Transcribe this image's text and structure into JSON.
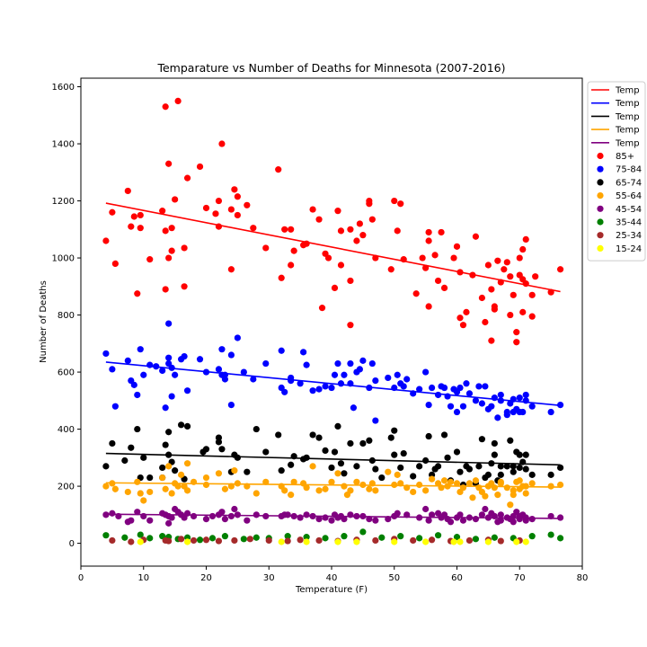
{
  "chart_data": {
    "type": "scatter",
    "title": "Temparature vs Number of Deaths for Minnesota (2007-2016)",
    "xlabel": "Temperature (F)",
    "ylabel": "Number of Deaths",
    "xlim": [
      0,
      80
    ],
    "ylim": [
      -80,
      1630
    ],
    "xticks": [
      0,
      10,
      20,
      30,
      40,
      50,
      60,
      70,
      80
    ],
    "yticks": [
      0,
      200,
      400,
      600,
      800,
      1000,
      1200,
      1400,
      1600
    ],
    "grid": false,
    "legend_position": "outside-right",
    "trendlines": [
      {
        "name": "Temp",
        "color": "#ff0000",
        "x": [
          4,
          76.5
        ],
        "y": [
          1192,
          882
        ]
      },
      {
        "name": "Temp",
        "color": "#0000ff",
        "x": [
          4,
          76.5
        ],
        "y": [
          635,
          483
        ]
      },
      {
        "name": "Temp",
        "color": "#000000",
        "x": [
          4,
          76.5
        ],
        "y": [
          315,
          275
        ]
      },
      {
        "name": "Temp",
        "color": "#ffa500",
        "x": [
          4,
          76.5
        ],
        "y": [
          212,
          197
        ]
      },
      {
        "name": "Temp",
        "color": "#800080",
        "x": [
          4,
          76.5
        ],
        "y": [
          102,
          87
        ]
      }
    ],
    "series": [
      {
        "name": "85+",
        "color": "#ff0000",
        "x": [
          4,
          5,
          5.5,
          7.5,
          8,
          8.5,
          9,
          9.5,
          9.5,
          11,
          13,
          13.5,
          13.5,
          13.5,
          14,
          14,
          14.5,
          14.5,
          15,
          15.5,
          16.5,
          16.5,
          17,
          19,
          20,
          21.5,
          22,
          22,
          22.5,
          24,
          24,
          24.5,
          25,
          25,
          26.5,
          27.5,
          29.5,
          31.5,
          32,
          32.5,
          33.5,
          33.5,
          34,
          35.5,
          36,
          37,
          38,
          38.5,
          39,
          39.5,
          40.5,
          41,
          41.5,
          41.5,
          43,
          43,
          43,
          44,
          44.5,
          45,
          46,
          46,
          46.5,
          47,
          49.5,
          50,
          50.5,
          51,
          51.5,
          53.5,
          54.5,
          55,
          55.5,
          55.5,
          55.5,
          56.5,
          57,
          57.5,
          58,
          59.5,
          60,
          60.5,
          60.5,
          61,
          61.5,
          62.5,
          63,
          64,
          64.5,
          65,
          65.5,
          65.5,
          66,
          66,
          66.5,
          67,
          67.5,
          68,
          68.5,
          68.5,
          69,
          69.5,
          69.5,
          70,
          70,
          70.5,
          70.5,
          70.5,
          71,
          71,
          72,
          72,
          72.5,
          75,
          76.5
        ],
        "y": [
          1060,
          1160,
          980,
          1235,
          1110,
          1145,
          875,
          1105,
          1150,
          995,
          1165,
          1095,
          890,
          1530,
          1330,
          1000,
          1025,
          1105,
          1205,
          1550,
          1035,
          900,
          1280,
          1320,
          1175,
          1155,
          1110,
          1200,
          1400,
          960,
          1170,
          1240,
          1215,
          1150,
          1185,
          1105,
          1035,
          1310,
          930,
          1100,
          975,
          1100,
          1025,
          1045,
          1050,
          1170,
          1135,
          825,
          1015,
          1000,
          895,
          1165,
          975,
          1095,
          765,
          920,
          1100,
          1060,
          1120,
          1080,
          1190,
          1200,
          1135,
          1000,
          960,
          1200,
          1095,
          1190,
          995,
          875,
          1000,
          965,
          1060,
          830,
          1090,
          1010,
          920,
          1090,
          895,
          1000,
          1040,
          790,
          950,
          765,
          810,
          940,
          1075,
          860,
          775,
          975,
          710,
          890,
          820,
          830,
          990,
          915,
          960,
          985,
          935,
          800,
          870,
          705,
          740,
          1000,
          940,
          1030,
          810,
          925,
          1065,
          910,
          870,
          795,
          935,
          880,
          960
        ]
      },
      {
        "name": "75-84",
        "color": "#0000ff",
        "x": [
          4,
          5,
          5.5,
          7.5,
          8,
          8.5,
          9,
          9.5,
          10,
          11,
          12,
          13,
          13.5,
          14,
          14,
          14,
          14.5,
          14.5,
          15,
          16,
          16.5,
          17,
          19,
          20,
          22,
          22.5,
          22.5,
          23,
          23,
          24,
          24,
          25,
          26,
          27.5,
          29.5,
          32,
          32,
          32.5,
          33.5,
          33.5,
          35,
          35.5,
          36,
          37,
          38,
          39,
          40,
          40.5,
          41,
          41.5,
          42,
          43,
          43,
          43.5,
          44,
          44.5,
          45,
          46,
          46.5,
          47,
          47,
          49,
          50,
          50.5,
          51,
          51.5,
          52,
          53,
          54,
          55,
          55.5,
          56,
          57,
          57.5,
          58,
          58.5,
          59,
          59.5,
          60,
          60,
          60.5,
          61,
          61.5,
          62,
          63,
          63.5,
          64,
          64.5,
          65,
          65.5,
          66,
          66.5,
          67,
          67,
          68,
          68,
          68.5,
          69,
          69,
          69.5,
          70,
          70,
          70.5,
          71,
          71,
          72,
          75,
          76.5
        ],
        "y": [
          665,
          610,
          480,
          640,
          570,
          555,
          520,
          680,
          590,
          625,
          620,
          605,
          475,
          770,
          650,
          630,
          615,
          515,
          590,
          645,
          655,
          535,
          645,
          600,
          610,
          680,
          590,
          575,
          590,
          660,
          485,
          720,
          600,
          575,
          630,
          675,
          545,
          530,
          570,
          580,
          560,
          670,
          625,
          535,
          540,
          550,
          545,
          590,
          630,
          560,
          590,
          560,
          630,
          475,
          600,
          610,
          640,
          545,
          630,
          430,
          570,
          580,
          545,
          590,
          560,
          550,
          575,
          525,
          540,
          600,
          485,
          545,
          520,
          550,
          545,
          515,
          480,
          540,
          530,
          460,
          545,
          480,
          560,
          525,
          500,
          550,
          490,
          550,
          470,
          480,
          510,
          440,
          520,
          500,
          460,
          450,
          490,
          460,
          505,
          470,
          460,
          510,
          460,
          520,
          500,
          480,
          460,
          485
        ]
      },
      {
        "name": "65-74",
        "color": "#000000",
        "x": [
          4,
          5,
          7,
          8,
          9,
          9.5,
          10,
          11,
          13,
          13,
          13.5,
          14,
          14,
          14.5,
          15,
          16,
          16.5,
          17,
          19.5,
          20,
          22,
          22,
          22.5,
          24,
          24.5,
          25,
          26.5,
          28,
          29.5,
          31.5,
          32,
          33.5,
          34,
          35.5,
          36,
          37,
          38,
          39,
          40,
          40.5,
          41,
          41.5,
          42,
          43,
          44,
          45,
          46,
          46.5,
          47,
          48,
          49.5,
          50,
          50,
          51,
          51.5,
          53,
          54,
          55,
          55.5,
          56,
          56.5,
          57,
          58,
          58.5,
          59,
          60,
          60.5,
          61,
          61.5,
          62,
          63,
          63.5,
          64,
          64.5,
          65,
          65.5,
          66,
          66,
          66.5,
          67,
          67,
          68,
          68.5,
          69,
          69,
          69.5,
          70,
          70,
          70.5,
          71,
          71,
          72,
          75,
          76.5
        ],
        "y": [
          270,
          350,
          290,
          335,
          400,
          230,
          300,
          230,
          265,
          230,
          345,
          390,
          310,
          285,
          255,
          415,
          225,
          410,
          320,
          330,
          355,
          370,
          330,
          250,
          310,
          300,
          250,
          400,
          320,
          380,
          255,
          275,
          305,
          295,
          300,
          380,
          370,
          325,
          265,
          320,
          410,
          280,
          245,
          350,
          270,
          350,
          360,
          290,
          260,
          230,
          370,
          395,
          310,
          265,
          315,
          235,
          270,
          290,
          375,
          240,
          260,
          270,
          380,
          300,
          220,
          320,
          250,
          205,
          270,
          260,
          210,
          270,
          365,
          230,
          240,
          280,
          310,
          350,
          220,
          270,
          240,
          270,
          360,
          270,
          250,
          320,
          265,
          310,
          285,
          260,
          310,
          240,
          240,
          265
        ]
      },
      {
        "name": "55-64",
        "color": "#ffa500",
        "x": [
          4,
          5,
          5.5,
          7.5,
          9,
          9.5,
          10,
          11,
          13,
          13.5,
          14,
          14.5,
          15,
          15.5,
          16,
          16.5,
          17,
          17,
          18,
          20,
          20,
          22,
          23,
          24,
          24.5,
          25,
          26.5,
          28,
          29.5,
          32,
          32.5,
          33.5,
          34,
          35.5,
          36,
          37,
          38,
          39,
          40,
          41,
          42,
          42.5,
          43,
          44,
          45,
          46,
          46.5,
          47,
          49,
          50,
          50.5,
          51,
          52,
          53,
          54,
          55,
          56,
          57,
          57.5,
          58,
          58.5,
          59,
          60,
          60.5,
          61,
          62,
          62.5,
          63,
          63.5,
          64,
          64.5,
          65,
          65.5,
          66,
          66.5,
          67,
          67,
          68,
          68.5,
          69,
          69,
          69.5,
          70,
          70,
          70.5,
          71,
          71,
          72,
          75,
          76.5
        ],
        "y": [
          200,
          210,
          190,
          180,
          215,
          175,
          150,
          180,
          230,
          190,
          270,
          175,
          210,
          200,
          240,
          200,
          280,
          185,
          215,
          230,
          205,
          245,
          190,
          200,
          255,
          210,
          200,
          175,
          215,
          200,
          185,
          170,
          215,
          210,
          195,
          270,
          185,
          190,
          215,
          245,
          200,
          170,
          185,
          215,
          205,
          190,
          210,
          185,
          250,
          205,
          240,
          210,
          195,
          180,
          205,
          185,
          225,
          210,
          195,
          220,
          200,
          215,
          210,
          180,
          195,
          210,
          160,
          220,
          195,
          180,
          165,
          200,
          210,
          195,
          170,
          210,
          215,
          195,
          135,
          185,
          170,
          215,
          190,
          220,
          200,
          175,
          200,
          210,
          200,
          205
        ]
      },
      {
        "name": "45-54",
        "color": "#800080",
        "x": [
          4,
          5,
          6,
          7.5,
          8,
          9,
          10,
          11,
          13,
          13.5,
          14,
          14,
          14.5,
          15,
          15.5,
          16,
          16.5,
          17,
          18,
          20,
          21,
          22,
          22.5,
          23,
          24,
          24.5,
          25,
          26.5,
          28,
          29.5,
          32,
          32.5,
          33,
          34,
          35,
          36,
          37,
          38,
          39,
          40,
          40.5,
          41,
          41.5,
          42,
          43,
          44,
          45,
          46,
          47,
          49,
          50,
          50.5,
          52,
          54,
          55,
          55.5,
          56,
          57,
          57.5,
          58,
          58.5,
          59,
          60,
          60.5,
          61,
          62,
          63,
          64,
          64.5,
          65,
          65.5,
          66,
          66.5,
          67,
          67,
          68,
          68.5,
          69,
          69,
          69.5,
          70,
          70,
          70.5,
          71,
          71,
          72,
          75,
          76.5
        ],
        "y": [
          100,
          105,
          95,
          75,
          80,
          110,
          95,
          80,
          105,
          100,
          70,
          95,
          90,
          120,
          110,
          100,
          90,
          105,
          95,
          85,
          95,
          100,
          110,
          85,
          95,
          120,
          100,
          80,
          100,
          95,
          95,
          100,
          100,
          95,
          90,
          100,
          95,
          85,
          90,
          80,
          100,
          90,
          95,
          85,
          100,
          95,
          95,
          85,
          80,
          85,
          95,
          105,
          100,
          90,
          120,
          80,
          100,
          105,
          90,
          100,
          85,
          75,
          90,
          100,
          80,
          90,
          85,
          100,
          120,
          90,
          105,
          95,
          75,
          80,
          100,
          90,
          85,
          95,
          75,
          110,
          85,
          95,
          100,
          80,
          90,
          85,
          95,
          90
        ]
      },
      {
        "name": "35-44",
        "color": "#008000",
        "x": [
          4,
          7,
          9.5,
          11,
          13,
          14,
          15.5,
          17,
          19,
          21,
          23,
          26,
          28,
          30,
          33,
          36,
          39,
          42,
          45,
          48,
          51,
          54,
          57,
          60,
          63,
          66,
          69,
          72,
          75,
          76.5
        ],
        "y": [
          28,
          20,
          30,
          18,
          25,
          22,
          15,
          20,
          12,
          18,
          25,
          15,
          20,
          18,
          25,
          22,
          18,
          25,
          40,
          20,
          25,
          18,
          28,
          22,
          15,
          20,
          18,
          25,
          30,
          18
        ]
      },
      {
        "name": "25-34",
        "color": "#a52a2a",
        "x": [
          5,
          8,
          10,
          13.5,
          14,
          16,
          18,
          20,
          22,
          24.5,
          27,
          30,
          33,
          35,
          38,
          41,
          44,
          47,
          50,
          53,
          56,
          59,
          62,
          65,
          67,
          70
        ],
        "y": [
          10,
          5,
          12,
          10,
          8,
          15,
          10,
          12,
          8,
          10,
          15,
          10,
          8,
          12,
          10,
          8,
          12,
          10,
          15,
          10,
          12,
          8,
          10,
          12,
          8,
          10
        ]
      },
      {
        "name": "15-24",
        "color": "#ffff00",
        "x": [
          9.5,
          17,
          32,
          36,
          41,
          44,
          50,
          55,
          59.5,
          60.5,
          65,
          69.5,
          71
        ],
        "y": [
          5,
          5,
          5,
          5,
          5,
          5,
          5,
          5,
          5,
          5,
          5,
          5,
          5
        ]
      }
    ]
  }
}
